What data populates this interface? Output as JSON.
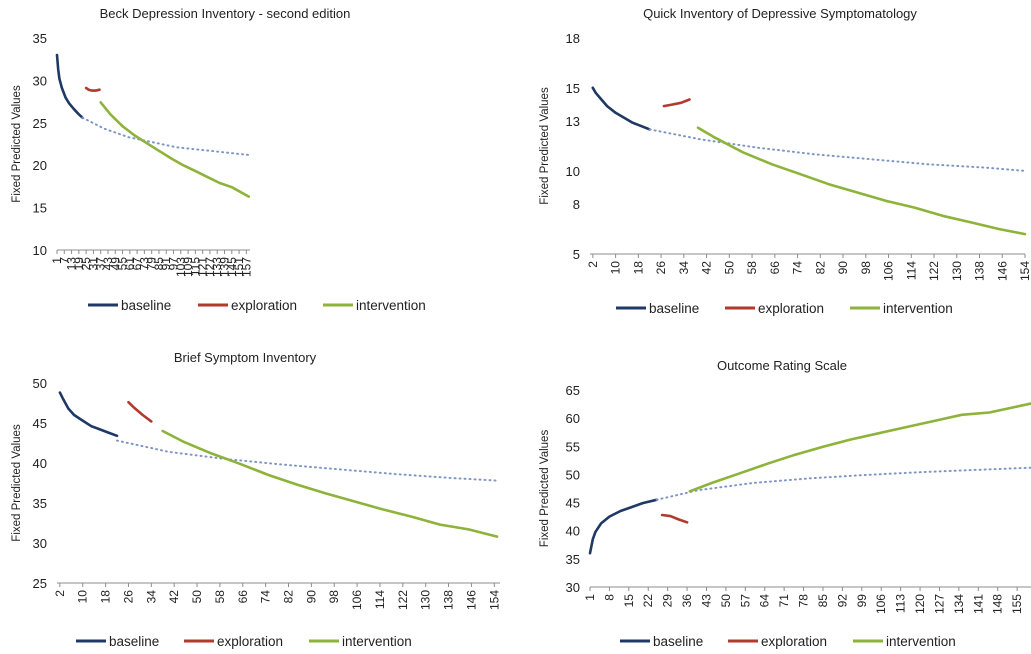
{
  "legend_labels": [
    "baseline",
    "exploration",
    "intervention"
  ],
  "colors": {
    "baseline": "#1f3864",
    "exploration": "#b03a2e",
    "intervention": "#8db33a",
    "projection": "#7f96c4",
    "text": "#222222",
    "axis": "#8c8c8c"
  },
  "chart_data": [
    {
      "type": "line",
      "title": "Beck Depression Inventory - second edition",
      "ylabel": "Fixed Predicted Values",
      "xlabel": "",
      "xlim": [
        1,
        160
      ],
      "ylim": [
        10,
        35
      ],
      "yticks": [
        10,
        15,
        20,
        25,
        30,
        35
      ],
      "xticks": [
        1,
        7,
        13,
        19,
        25,
        31,
        37,
        43,
        49,
        55,
        61,
        67,
        73,
        79,
        85,
        91,
        97,
        103,
        109,
        115,
        121,
        127,
        133,
        139,
        145,
        151,
        157
      ],
      "grid": false,
      "legend": "bottom",
      "series": [
        {
          "name": "baseline",
          "style": "solid",
          "x": [
            1,
            2,
            3,
            5,
            8,
            11,
            15,
            19,
            22
          ],
          "y": [
            33,
            31.3,
            30.2,
            29.1,
            28.0,
            27.3,
            26.6,
            26.0,
            25.6
          ]
        },
        {
          "name": "",
          "style": "dotted",
          "x": [
            22,
            40,
            60,
            80,
            100,
            120,
            140,
            159
          ],
          "y": [
            25.6,
            24.3,
            23.3,
            22.7,
            22.1,
            21.8,
            21.5,
            21.2
          ]
        },
        {
          "name": "exploration",
          "style": "solid",
          "x": [
            25,
            27,
            30,
            33,
            36
          ],
          "y": [
            29.1,
            28.9,
            28.8,
            28.8,
            28.9
          ]
        },
        {
          "name": "intervention",
          "style": "solid",
          "x": [
            37,
            45,
            55,
            65,
            75,
            85,
            95,
            105,
            115,
            125,
            135,
            145,
            159
          ],
          "y": [
            27.4,
            26.0,
            24.6,
            23.5,
            22.6,
            21.7,
            20.8,
            20.0,
            19.3,
            18.6,
            17.9,
            17.4,
            16.3
          ]
        }
      ]
    },
    {
      "type": "line",
      "title": "Quick Inventory of Depressive Symptomatology",
      "ylabel": "Fixed Predicted Values",
      "xlabel": "",
      "xlim": [
        1,
        154
      ],
      "ylim": [
        5,
        18
      ],
      "yticks": [
        5,
        8,
        10,
        13,
        15,
        18
      ],
      "xticks": [
        2,
        10,
        18,
        26,
        34,
        42,
        50,
        58,
        66,
        74,
        82,
        90,
        98,
        106,
        114,
        122,
        130,
        138,
        146,
        154
      ],
      "grid": false,
      "legend": "bottom",
      "series": [
        {
          "name": "baseline",
          "style": "solid",
          "x": [
            2,
            3,
            5,
            7,
            10,
            13,
            16,
            19,
            22
          ],
          "y": [
            15.0,
            14.7,
            14.3,
            13.9,
            13.5,
            13.2,
            12.9,
            12.7,
            12.5
          ]
        },
        {
          "name": "",
          "style": "dotted",
          "x": [
            22,
            40,
            60,
            80,
            100,
            120,
            140,
            154
          ],
          "y": [
            12.5,
            11.9,
            11.4,
            11.0,
            10.7,
            10.4,
            10.2,
            10.0
          ]
        },
        {
          "name": "exploration",
          "style": "solid",
          "x": [
            27,
            30,
            33,
            36
          ],
          "y": [
            13.9,
            14.0,
            14.1,
            14.3
          ]
        },
        {
          "name": "intervention",
          "style": "solid",
          "x": [
            39,
            45,
            55,
            65,
            75,
            85,
            95,
            105,
            115,
            125,
            135,
            145,
            154
          ],
          "y": [
            12.6,
            12.0,
            11.1,
            10.4,
            9.8,
            9.2,
            8.7,
            8.2,
            7.8,
            7.3,
            6.9,
            6.5,
            6.2
          ]
        }
      ]
    },
    {
      "type": "line",
      "title": "Brief Symptom Inventory",
      "ylabel": "Fixed Predicted Values",
      "xlabel": "",
      "xlim": [
        1,
        156
      ],
      "ylim": [
        25,
        50
      ],
      "yticks": [
        25,
        30,
        35,
        40,
        45,
        50
      ],
      "xticks": [
        2,
        10,
        18,
        26,
        34,
        42,
        50,
        58,
        66,
        74,
        82,
        90,
        98,
        106,
        114,
        122,
        130,
        138,
        146,
        154
      ],
      "grid": false,
      "legend": "bottom",
      "series": [
        {
          "name": "baseline",
          "style": "solid",
          "x": [
            2,
            3,
            5,
            7,
            10,
            13,
            16,
            19,
            22
          ],
          "y": [
            48.8,
            48.1,
            46.8,
            46.0,
            45.3,
            44.6,
            44.2,
            43.8,
            43.4
          ]
        },
        {
          "name": "",
          "style": "dotted",
          "x": [
            22,
            40,
            60,
            80,
            100,
            120,
            140,
            155
          ],
          "y": [
            42.8,
            41.4,
            40.5,
            39.8,
            39.2,
            38.6,
            38.1,
            37.8
          ]
        },
        {
          "name": "exploration",
          "style": "solid",
          "x": [
            26,
            28,
            31,
            34
          ],
          "y": [
            47.6,
            46.9,
            46.0,
            45.2
          ]
        },
        {
          "name": "intervention",
          "style": "solid",
          "x": [
            38,
            45,
            55,
            65,
            75,
            85,
            95,
            105,
            115,
            125,
            135,
            145,
            155
          ],
          "y": [
            44.0,
            42.7,
            41.2,
            39.9,
            38.5,
            37.3,
            36.2,
            35.2,
            34.2,
            33.3,
            32.3,
            31.7,
            30.8
          ]
        }
      ]
    },
    {
      "type": "line",
      "title": "Outcome Rating Scale",
      "ylabel": "Fixed Predicted Values",
      "xlabel": "",
      "xlim": [
        1,
        160
      ],
      "ylim": [
        30,
        65
      ],
      "yticks": [
        30,
        35,
        40,
        45,
        50,
        55,
        60,
        65
      ],
      "xticks": [
        1,
        8,
        15,
        22,
        29,
        36,
        43,
        50,
        57,
        64,
        71,
        78,
        85,
        92,
        99,
        106,
        113,
        120,
        127,
        134,
        141,
        148,
        155
      ],
      "grid": false,
      "legend": "bottom",
      "series": [
        {
          "name": "baseline",
          "style": "solid",
          "x": [
            1,
            2,
            3,
            5,
            8,
            12,
            16,
            20,
            25
          ],
          "y": [
            36.0,
            38.5,
            39.8,
            41.3,
            42.5,
            43.5,
            44.2,
            44.9,
            45.5
          ]
        },
        {
          "name": "",
          "style": "dotted",
          "x": [
            25,
            40,
            60,
            80,
            100,
            120,
            140,
            160
          ],
          "y": [
            45.5,
            47.2,
            48.5,
            49.3,
            49.9,
            50.4,
            50.8,
            51.2
          ]
        },
        {
          "name": "exploration",
          "style": "solid",
          "x": [
            27,
            30,
            33,
            36
          ],
          "y": [
            42.8,
            42.6,
            42.0,
            41.5
          ]
        },
        {
          "name": "intervention",
          "style": "solid",
          "x": [
            37,
            45,
            55,
            65,
            75,
            85,
            95,
            105,
            115,
            125,
            135,
            145,
            160
          ],
          "y": [
            47.0,
            48.5,
            50.2,
            51.9,
            53.5,
            54.9,
            56.2,
            57.3,
            58.4,
            59.5,
            60.6,
            61.0,
            62.6
          ]
        }
      ]
    }
  ]
}
